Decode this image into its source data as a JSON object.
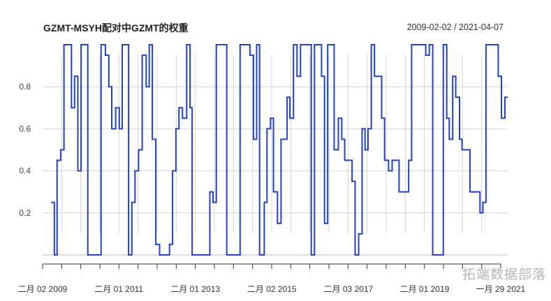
{
  "chart_data": {
    "type": "line",
    "step": true,
    "title": "GZMT-MSYH配对中GZMT的权重",
    "date_range_label": "2009-02-02 / 2021-04-07",
    "color": "#2241c4",
    "ylim": [
      0,
      1
    ],
    "yticks": [
      0.2,
      0.4,
      0.6,
      0.8
    ],
    "ytick_labels": [
      "0.2",
      "0.4",
      "0.6",
      "0.8"
    ],
    "xlim": [
      "2009-02-02",
      "2021-04-07"
    ],
    "x_major_ticks": [
      "2009-02-02",
      "2011-02-01",
      "2013-02-01",
      "2015-02-02",
      "2017-02-03",
      "2019-02-01",
      "2021-01-29"
    ],
    "x_tick_labels": [
      "二月 02 2009",
      "二月 01 2011",
      "二月 01 2013",
      "二月 02 2015",
      "二月 03 2017",
      "二月 01 2019",
      "一月 29 2021"
    ],
    "grid": true,
    "legend": "none",
    "points": [
      [
        "2009-04-25",
        0.25
      ],
      [
        "2009-05-25",
        0
      ],
      [
        "2009-06-20",
        0.45
      ],
      [
        "2009-07-25",
        0.5
      ],
      [
        "2009-08-25",
        1.0
      ],
      [
        "2009-11-05",
        0.7
      ],
      [
        "2009-12-05",
        0.85
      ],
      [
        "2010-01-05",
        0.4
      ],
      [
        "2010-02-05",
        1.0
      ],
      [
        "2010-04-10",
        0
      ],
      [
        "2010-08-15",
        1.0
      ],
      [
        "2010-09-25",
        0.95
      ],
      [
        "2010-10-28",
        0.8
      ],
      [
        "2010-11-25",
        0.6
      ],
      [
        "2011-01-01",
        0.7
      ],
      [
        "2011-02-05",
        0.6
      ],
      [
        "2011-03-05",
        1.0
      ],
      [
        "2011-05-05",
        0
      ],
      [
        "2011-06-05",
        0.25
      ],
      [
        "2011-07-05",
        0.4
      ],
      [
        "2011-08-08",
        0.5
      ],
      [
        "2011-09-12",
        0.95
      ],
      [
        "2011-10-20",
        0.8
      ],
      [
        "2011-11-18",
        1.0
      ],
      [
        "2011-12-18",
        0.55
      ],
      [
        "2012-01-20",
        0.05
      ],
      [
        "2012-02-25",
        0
      ],
      [
        "2012-05-30",
        0.05
      ],
      [
        "2012-06-28",
        0.4
      ],
      [
        "2012-07-30",
        0.6
      ],
      [
        "2012-08-28",
        0.7
      ],
      [
        "2012-10-01",
        0.65
      ],
      [
        "2012-11-10",
        1.0
      ],
      [
        "2012-12-12",
        0.7
      ],
      [
        "2013-01-01",
        0
      ],
      [
        "2013-06-20",
        0.3
      ],
      [
        "2013-07-20",
        0.25
      ],
      [
        "2013-08-20",
        1.0
      ],
      [
        "2013-11-28",
        0
      ],
      [
        "2014-04-05",
        1.0
      ],
      [
        "2014-07-08",
        0.95
      ],
      [
        "2014-08-10",
        0.55
      ],
      [
        "2014-09-10",
        1.0
      ],
      [
        "2014-10-08",
        0
      ],
      [
        "2014-11-22",
        0.25
      ],
      [
        "2014-12-18",
        0.6
      ],
      [
        "2015-01-20",
        0.65
      ],
      [
        "2015-02-18",
        0.3
      ],
      [
        "2015-03-28",
        0.15
      ],
      [
        "2015-05-01",
        0.55
      ],
      [
        "2015-06-28",
        0.75
      ],
      [
        "2015-07-25",
        0.65
      ],
      [
        "2015-08-28",
        1.0
      ],
      [
        "2015-10-01",
        0.85
      ],
      [
        "2015-11-03",
        1.0
      ],
      [
        "2016-02-14",
        0
      ],
      [
        "2016-03-16",
        1.0
      ],
      [
        "2016-05-22",
        0.85
      ],
      [
        "2016-06-20",
        0.15
      ],
      [
        "2016-07-20",
        1.0
      ],
      [
        "2016-09-20",
        0.5
      ],
      [
        "2016-10-30",
        0.65
      ],
      [
        "2016-12-02",
        0.55
      ],
      [
        "2016-12-30",
        0.45
      ],
      [
        "2017-03-10",
        0.35
      ],
      [
        "2017-04-08",
        0
      ],
      [
        "2017-05-12",
        0.1
      ],
      [
        "2017-06-14",
        0.6
      ],
      [
        "2017-07-12",
        0.5
      ],
      [
        "2017-08-10",
        0.6
      ],
      [
        "2017-09-10",
        1.0
      ],
      [
        "2017-10-10",
        0.85
      ],
      [
        "2017-12-18",
        0.65
      ],
      [
        "2018-01-15",
        0.45
      ],
      [
        "2018-02-22",
        0.4
      ],
      [
        "2018-03-28",
        0.45
      ],
      [
        "2018-06-02",
        0.3
      ],
      [
        "2018-09-02",
        0.45
      ],
      [
        "2018-09-30",
        1.0
      ],
      [
        "2019-02-12",
        0.95
      ],
      [
        "2019-03-18",
        1.0
      ],
      [
        "2019-04-20",
        0
      ],
      [
        "2019-07-30",
        1.0
      ],
      [
        "2019-09-01",
        0.65
      ],
      [
        "2019-09-25",
        0.55
      ],
      [
        "2019-10-28",
        0.85
      ],
      [
        "2019-11-26",
        0.75
      ],
      [
        "2020-01-01",
        0.55
      ],
      [
        "2020-01-25",
        0.5
      ],
      [
        "2020-04-10",
        0.3
      ],
      [
        "2020-07-15",
        0.2
      ],
      [
        "2020-08-12",
        0.25
      ],
      [
        "2020-09-10",
        1.0
      ],
      [
        "2021-01-05",
        0.85
      ],
      [
        "2021-02-05",
        0.65
      ],
      [
        "2021-03-10",
        0.75
      ],
      [
        "2021-04-07",
        0.75
      ]
    ]
  },
  "watermark": "拓端数据部落"
}
